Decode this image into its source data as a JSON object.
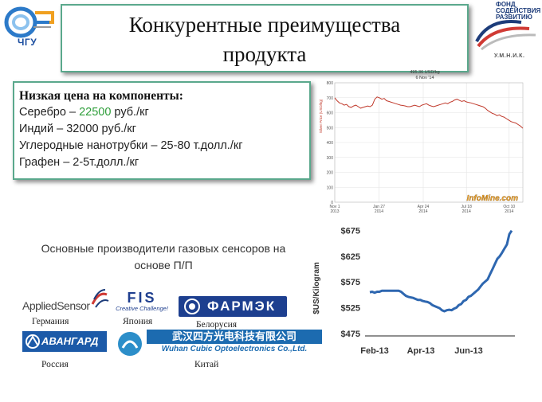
{
  "header": {
    "title_line1": "Конкурентные преимущества",
    "title_line2": "продукта",
    "left_logo_label": "ЧГУ",
    "fund_logo_lines": [
      "ФОНД",
      "СОДЕЙСТВИЯ",
      "РАЗВИТИЮ"
    ],
    "umnik": "У.М.Н.И.К."
  },
  "prices": {
    "heading": "Низкая цена на компоненты:",
    "silver_prefix": "Серебро – ",
    "silver_value": "22500",
    "silver_suffix": " руб./кг",
    "indium": "Индий – 32000 руб./кг",
    "nanotubes": "Углеродные нанотрубки  – 25-80 т.долл./кг",
    "graphene": "Графен – 2-5т.долл./кг"
  },
  "producers": {
    "text": "Основные производители газовых сенсоров на основе П/П",
    "logos": {
      "applied": "AppliedSensor",
      "fis": "FIS",
      "fis_tagline": "Creative Challenge!",
      "farmek": "ФАРМЭК",
      "avangard": "АВАНГАРД",
      "wuhan_cn": "武汉四方光电科技有限公司",
      "wuhan_en": "Wuhan Cubic Optoelectronics Co.,Ltd."
    },
    "countries": {
      "germany": "Германия",
      "japan": "Япония",
      "belarus": "Белорусия",
      "russia": "Россия",
      "china": "Китай"
    }
  },
  "chart_data": [
    {
      "type": "line",
      "title": "495.36 USD/kg",
      "subtitle": "6 Nov '14",
      "ylabel": "Silver Price (USD/kg)",
      "watermark": "InfoMine.com",
      "ylim": [
        0,
        800
      ],
      "yticks": [
        0,
        100,
        200,
        300,
        400,
        500,
        600,
        700,
        800
      ],
      "xticks": [
        {
          "t": 0,
          "label1": "Nov 1",
          "label2": "2013"
        },
        {
          "t": 87,
          "label1": "Jan 27",
          "label2": "2014"
        },
        {
          "t": 174,
          "label1": "Apr 24",
          "label2": "2014"
        },
        {
          "t": 259,
          "label1": "Jul 18",
          "label2": "2014"
        },
        {
          "t": 343,
          "label1": "Oct 10",
          "label2": "2014"
        }
      ],
      "tmax": 370,
      "grid": true,
      "color": "#c0392b",
      "values": [
        700,
        680,
        665,
        660,
        650,
        655,
        640,
        635,
        645,
        650,
        640,
        630,
        635,
        640,
        645,
        640,
        650,
        690,
        705,
        700,
        690,
        695,
        680,
        675,
        670,
        665,
        660,
        655,
        650,
        648,
        645,
        640,
        640,
        645,
        650,
        645,
        640,
        650,
        655,
        660,
        650,
        645,
        640,
        645,
        650,
        655,
        660,
        665,
        660,
        670,
        675,
        685,
        690,
        682,
        675,
        680,
        672,
        668,
        665,
        660,
        655,
        650,
        645,
        640,
        630,
        615,
        605,
        595,
        590,
        580,
        585,
        575,
        570,
        560,
        550,
        540,
        535,
        530,
        520,
        510,
        495
      ]
    },
    {
      "type": "line",
      "ylabel": "$US/Kilogram",
      "yticks": [
        475,
        525,
        575,
        625,
        675
      ],
      "ylim": [
        470,
        690
      ],
      "xticks": [
        "Feb-13",
        "Apr-13",
        "Jun-13"
      ],
      "grid": false,
      "color": "#2e67b0",
      "values": [
        555,
        556,
        554,
        556,
        556,
        558,
        558,
        558,
        558,
        558,
        558,
        558,
        558,
        556,
        552,
        548,
        546,
        545,
        544,
        542,
        540,
        540,
        538,
        537,
        536,
        534,
        530,
        528,
        526,
        524,
        520,
        518,
        520,
        521,
        520,
        523,
        525,
        530,
        532,
        538,
        540,
        546,
        548,
        552,
        556,
        560,
        566,
        572,
        576,
        580,
        590,
        600,
        610,
        620,
        625,
        632,
        640,
        648,
        668,
        675
      ]
    }
  ]
}
